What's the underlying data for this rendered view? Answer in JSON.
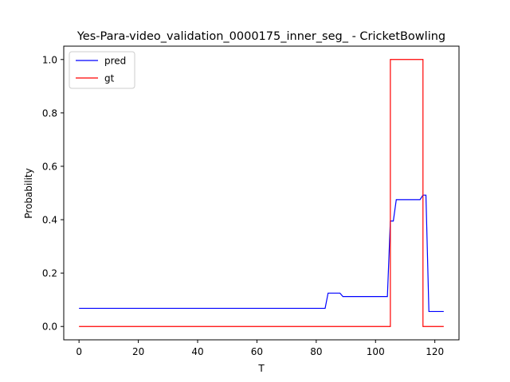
{
  "chart_data": {
    "type": "line",
    "title": "Yes-Para-video_validation_0000175_inner_seg_ - CricketBowling",
    "xlabel": "T",
    "ylabel": "Probability",
    "xlim": [
      -5.15,
      128.15
    ],
    "ylim": [
      -0.05,
      1.05
    ],
    "xticks": [
      0,
      20,
      40,
      60,
      80,
      100,
      120
    ],
    "yticks": [
      0.0,
      0.2,
      0.4,
      0.6,
      0.8,
      1.0
    ],
    "xtick_labels": [
      "0",
      "20",
      "40",
      "60",
      "80",
      "100",
      "120"
    ],
    "ytick_labels": [
      "0.0",
      "0.2",
      "0.4",
      "0.6",
      "0.8",
      "1.0"
    ],
    "grid": false,
    "legend_position": "top-left",
    "series": [
      {
        "name": "pred",
        "color": "#0000ff",
        "points": [
          [
            0,
            0.068
          ],
          [
            83,
            0.068
          ],
          [
            84,
            0.125
          ],
          [
            88,
            0.125
          ],
          [
            89,
            0.112
          ],
          [
            104,
            0.112
          ],
          [
            105,
            0.395
          ],
          [
            106,
            0.395
          ],
          [
            107,
            0.475
          ],
          [
            115,
            0.475
          ],
          [
            116,
            0.492
          ],
          [
            117,
            0.492
          ],
          [
            118,
            0.056
          ],
          [
            123,
            0.056
          ]
        ]
      },
      {
        "name": "gt",
        "color": "#ff0000",
        "points": [
          [
            0,
            0
          ],
          [
            105,
            0
          ],
          [
            105,
            1
          ],
          [
            116,
            1
          ],
          [
            116,
            0
          ],
          [
            123,
            0
          ]
        ]
      }
    ]
  }
}
